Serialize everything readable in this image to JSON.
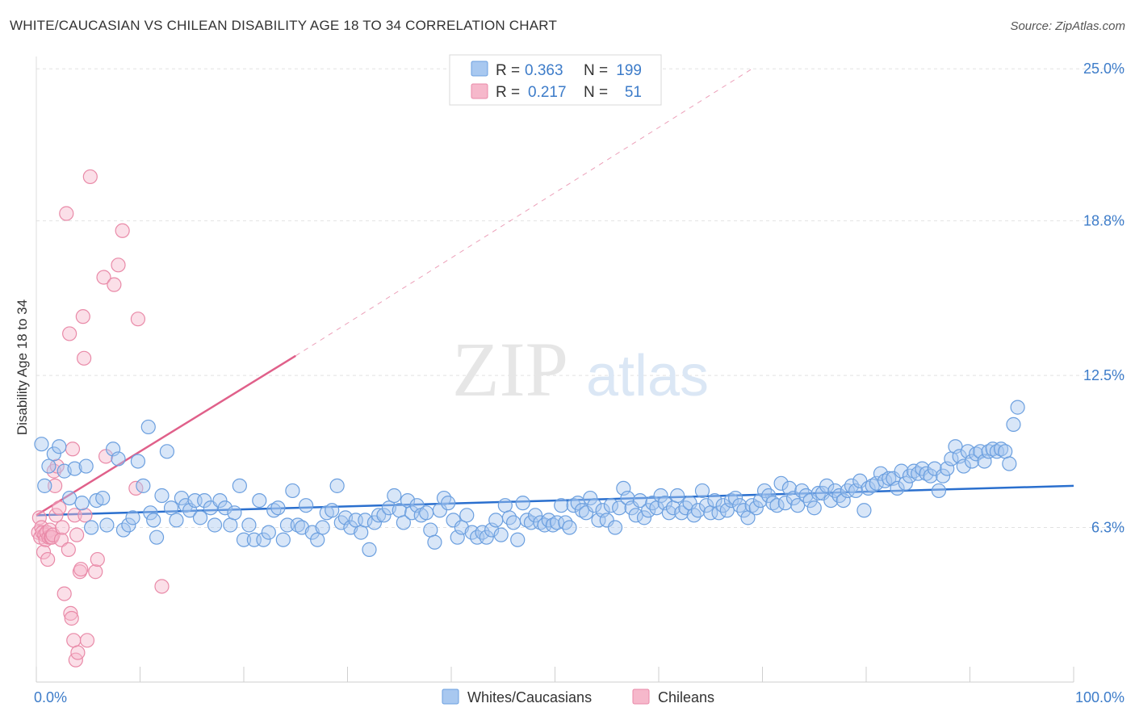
{
  "title": "WHITE/CAUCASIAN VS CHILEAN DISABILITY AGE 18 TO 34 CORRELATION CHART",
  "source": "Source: ZipAtlas.com",
  "watermark": {
    "zip": "ZIP",
    "atlas": "atlas"
  },
  "colors": {
    "blue_fill": "#a8c8f0",
    "blue_stroke": "#6b9fdf",
    "blue_line": "#2a6fce",
    "pink_fill": "#f6b8cb",
    "pink_stroke": "#e98aa8",
    "pink_line": "#e0608a",
    "axis_label": "#3d7cc9"
  },
  "legend": {
    "rows": [
      {
        "r_label": "R =",
        "r_value": "0.363",
        "n_label": "N =",
        "n_value": "199"
      },
      {
        "r_label": "R =",
        "r_value": "0.217",
        "n_label": "N =",
        "n_value": "51"
      }
    ]
  },
  "bottom_legend": [
    "Whites/Caucasians",
    "Chileans"
  ],
  "chart_data": {
    "type": "scatter",
    "title": "WHITE/CAUCASIAN VS CHILEAN DISABILITY AGE 18 TO 34 CORRELATION CHART",
    "xlabel": "",
    "ylabel": "Disability Age 18 to 34",
    "xlim": [
      0,
      100
    ],
    "ylim": [
      0,
      25.5
    ],
    "x_tick_labels": [
      "0.0%",
      "100.0%"
    ],
    "y_ticks": [
      6.3,
      12.5,
      18.8,
      25.0
    ],
    "y_tick_labels": [
      "6.3%",
      "12.5%",
      "18.8%",
      "25.0%"
    ],
    "grid": true,
    "legend_position": "top-center",
    "series": [
      {
        "name": "Whites/Caucasians",
        "trend": {
          "x": [
            0,
            100
          ],
          "y": [
            6.8,
            8.0
          ]
        },
        "points": [
          [
            0.5,
            9.7
          ],
          [
            0.8,
            8.0
          ],
          [
            1.2,
            8.8
          ],
          [
            1.7,
            9.3
          ],
          [
            2.2,
            9.6
          ],
          [
            2.7,
            8.6
          ],
          [
            3.2,
            7.5
          ],
          [
            3.7,
            8.7
          ],
          [
            4.4,
            7.3
          ],
          [
            4.8,
            8.8
          ],
          [
            5.3,
            6.3
          ],
          [
            5.8,
            7.4
          ],
          [
            6.4,
            7.5
          ],
          [
            6.8,
            6.4
          ],
          [
            7.4,
            9.5
          ],
          [
            7.9,
            9.1
          ],
          [
            8.4,
            6.2
          ],
          [
            8.9,
            6.4
          ],
          [
            9.3,
            6.7
          ],
          [
            9.8,
            9.0
          ],
          [
            10.3,
            8.0
          ],
          [
            10.8,
            10.4
          ],
          [
            11.0,
            6.9
          ],
          [
            11.3,
            6.6
          ],
          [
            11.6,
            5.9
          ],
          [
            12.1,
            7.6
          ],
          [
            12.6,
            9.4
          ],
          [
            13.0,
            7.1
          ],
          [
            13.5,
            6.6
          ],
          [
            14.0,
            7.5
          ],
          [
            14.4,
            7.2
          ],
          [
            14.8,
            7.0
          ],
          [
            15.3,
            7.4
          ],
          [
            15.8,
            6.7
          ],
          [
            16.2,
            7.4
          ],
          [
            16.8,
            7.1
          ],
          [
            17.2,
            6.4
          ],
          [
            17.7,
            7.4
          ],
          [
            18.2,
            7.1
          ],
          [
            18.7,
            6.4
          ],
          [
            19.1,
            6.9
          ],
          [
            19.6,
            8.0
          ],
          [
            20.0,
            5.8
          ],
          [
            20.5,
            6.4
          ],
          [
            21.0,
            5.8
          ],
          [
            21.5,
            7.4
          ],
          [
            21.9,
            5.8
          ],
          [
            22.4,
            6.1
          ],
          [
            22.9,
            7.0
          ],
          [
            23.3,
            7.1
          ],
          [
            23.8,
            5.8
          ],
          [
            24.2,
            6.4
          ],
          [
            24.7,
            7.8
          ],
          [
            25.2,
            6.4
          ],
          [
            25.6,
            6.3
          ],
          [
            26.0,
            7.2
          ],
          [
            26.6,
            6.1
          ],
          [
            27.1,
            5.8
          ],
          [
            27.6,
            6.3
          ],
          [
            28.0,
            6.9
          ],
          [
            28.5,
            7.0
          ],
          [
            29.0,
            8.0
          ],
          [
            29.4,
            6.5
          ],
          [
            29.8,
            6.7
          ],
          [
            30.3,
            6.3
          ],
          [
            30.8,
            6.6
          ],
          [
            31.3,
            6.1
          ],
          [
            31.7,
            6.6
          ],
          [
            32.1,
            5.4
          ],
          [
            32.6,
            6.5
          ],
          [
            33.0,
            6.8
          ],
          [
            33.5,
            6.8
          ],
          [
            34.0,
            7.1
          ],
          [
            34.5,
            7.6
          ],
          [
            35.0,
            7.0
          ],
          [
            35.4,
            6.5
          ],
          [
            35.8,
            7.4
          ],
          [
            36.2,
            6.9
          ],
          [
            36.7,
            7.2
          ],
          [
            37.1,
            6.8
          ],
          [
            37.6,
            6.9
          ],
          [
            38.0,
            6.2
          ],
          [
            38.4,
            5.7
          ],
          [
            38.9,
            7.0
          ],
          [
            39.3,
            7.5
          ],
          [
            39.7,
            7.3
          ],
          [
            40.2,
            6.6
          ],
          [
            40.6,
            5.9
          ],
          [
            41.0,
            6.3
          ],
          [
            41.5,
            6.8
          ],
          [
            42.0,
            6.1
          ],
          [
            42.5,
            5.9
          ],
          [
            43.0,
            6.1
          ],
          [
            43.4,
            5.9
          ],
          [
            43.9,
            6.2
          ],
          [
            44.3,
            6.6
          ],
          [
            44.8,
            6.0
          ],
          [
            45.2,
            7.2
          ],
          [
            45.6,
            6.7
          ],
          [
            46.0,
            6.5
          ],
          [
            46.4,
            5.8
          ],
          [
            46.9,
            7.3
          ],
          [
            47.3,
            6.6
          ],
          [
            47.7,
            6.5
          ],
          [
            48.1,
            6.8
          ],
          [
            48.6,
            6.5
          ],
          [
            49.0,
            6.4
          ],
          [
            49.4,
            6.6
          ],
          [
            49.8,
            6.4
          ],
          [
            50.2,
            6.5
          ],
          [
            50.6,
            7.2
          ],
          [
            51.0,
            6.5
          ],
          [
            51.4,
            6.3
          ],
          [
            51.8,
            7.2
          ],
          [
            52.2,
            7.3
          ],
          [
            52.6,
            7.0
          ],
          [
            53.0,
            6.9
          ],
          [
            53.4,
            7.5
          ],
          [
            53.8,
            7.2
          ],
          [
            54.2,
            6.6
          ],
          [
            54.6,
            7.0
          ],
          [
            55.0,
            6.6
          ],
          [
            55.4,
            7.2
          ],
          [
            55.8,
            6.3
          ],
          [
            56.2,
            7.1
          ],
          [
            56.6,
            7.9
          ],
          [
            57.0,
            7.5
          ],
          [
            57.4,
            7.1
          ],
          [
            57.8,
            6.8
          ],
          [
            58.2,
            7.4
          ],
          [
            58.6,
            6.7
          ],
          [
            59.0,
            7.0
          ],
          [
            59.4,
            7.3
          ],
          [
            59.8,
            7.1
          ],
          [
            60.2,
            7.6
          ],
          [
            60.6,
            7.3
          ],
          [
            61.0,
            6.9
          ],
          [
            61.4,
            7.1
          ],
          [
            61.8,
            7.6
          ],
          [
            62.2,
            6.9
          ],
          [
            62.6,
            7.1
          ],
          [
            63.0,
            7.3
          ],
          [
            63.4,
            6.8
          ],
          [
            63.8,
            7.0
          ],
          [
            64.2,
            7.8
          ],
          [
            64.6,
            7.2
          ],
          [
            65.0,
            6.9
          ],
          [
            65.4,
            7.4
          ],
          [
            65.8,
            6.9
          ],
          [
            66.2,
            7.2
          ],
          [
            66.6,
            7.0
          ],
          [
            67.0,
            7.4
          ],
          [
            67.4,
            7.5
          ],
          [
            67.8,
            7.2
          ],
          [
            68.2,
            7.0
          ],
          [
            68.6,
            6.7
          ],
          [
            69.0,
            7.2
          ],
          [
            69.4,
            7.1
          ],
          [
            69.8,
            7.4
          ],
          [
            70.2,
            7.8
          ],
          [
            70.6,
            7.6
          ],
          [
            71.0,
            7.3
          ],
          [
            71.4,
            7.2
          ],
          [
            71.8,
            8.1
          ],
          [
            72.2,
            7.3
          ],
          [
            72.6,
            7.9
          ],
          [
            73.0,
            7.5
          ],
          [
            73.4,
            7.2
          ],
          [
            73.8,
            7.8
          ],
          [
            74.2,
            7.6
          ],
          [
            74.6,
            7.4
          ],
          [
            75.0,
            7.1
          ],
          [
            75.4,
            7.7
          ],
          [
            75.8,
            7.7
          ],
          [
            76.2,
            8.0
          ],
          [
            76.6,
            7.4
          ],
          [
            77.0,
            7.8
          ],
          [
            77.4,
            7.6
          ],
          [
            77.8,
            7.4
          ],
          [
            78.2,
            7.8
          ],
          [
            78.6,
            8.0
          ],
          [
            79.0,
            7.8
          ],
          [
            79.4,
            8.2
          ],
          [
            79.8,
            7.0
          ],
          [
            80.2,
            7.9
          ],
          [
            80.6,
            8.0
          ],
          [
            81.0,
            8.1
          ],
          [
            81.4,
            8.5
          ],
          [
            81.8,
            8.2
          ],
          [
            82.2,
            8.3
          ],
          [
            82.6,
            8.3
          ],
          [
            83.0,
            7.9
          ],
          [
            83.4,
            8.6
          ],
          [
            83.8,
            8.1
          ],
          [
            84.2,
            8.4
          ],
          [
            84.6,
            8.6
          ],
          [
            85.0,
            8.5
          ],
          [
            85.4,
            8.7
          ],
          [
            85.8,
            8.5
          ],
          [
            86.2,
            8.4
          ],
          [
            86.6,
            8.7
          ],
          [
            87.0,
            7.8
          ],
          [
            87.4,
            8.4
          ],
          [
            87.8,
            8.7
          ],
          [
            88.2,
            9.1
          ],
          [
            88.6,
            9.6
          ],
          [
            89.0,
            9.2
          ],
          [
            89.4,
            8.8
          ],
          [
            89.8,
            9.4
          ],
          [
            90.2,
            9.0
          ],
          [
            90.6,
            9.3
          ],
          [
            91.0,
            9.4
          ],
          [
            91.4,
            9.0
          ],
          [
            91.8,
            9.4
          ],
          [
            92.2,
            9.5
          ],
          [
            92.6,
            9.4
          ],
          [
            93.0,
            9.5
          ],
          [
            93.4,
            9.4
          ],
          [
            93.8,
            8.9
          ],
          [
            94.2,
            10.5
          ],
          [
            94.6,
            11.2
          ]
        ]
      },
      {
        "name": "Chileans",
        "trend": {
          "x": [
            0,
            25
          ],
          "y": [
            6.8,
            13.3
          ],
          "extended": {
            "x": [
              25,
              69
            ],
            "y": [
              13.3,
              25.0
            ]
          }
        },
        "points": [
          [
            0.2,
            6.1
          ],
          [
            0.3,
            6.7
          ],
          [
            0.4,
            5.9
          ],
          [
            0.5,
            6.3
          ],
          [
            0.6,
            6.1
          ],
          [
            0.7,
            5.3
          ],
          [
            0.8,
            6.0
          ],
          [
            0.9,
            5.8
          ],
          [
            1.0,
            6.1
          ],
          [
            1.1,
            5.0
          ],
          [
            1.2,
            5.9
          ],
          [
            1.3,
            6.2
          ],
          [
            1.4,
            5.9
          ],
          [
            1.5,
            5.9
          ],
          [
            1.6,
            6.0
          ],
          [
            1.7,
            8.6
          ],
          [
            1.8,
            8.0
          ],
          [
            1.9,
            6.8
          ],
          [
            2.0,
            8.8
          ],
          [
            2.2,
            7.1
          ],
          [
            2.4,
            5.8
          ],
          [
            2.5,
            6.3
          ],
          [
            2.7,
            3.6
          ],
          [
            2.9,
            19.1
          ],
          [
            3.1,
            5.4
          ],
          [
            3.2,
            14.2
          ],
          [
            3.3,
            2.8
          ],
          [
            3.4,
            2.6
          ],
          [
            3.5,
            9.5
          ],
          [
            3.6,
            1.7
          ],
          [
            3.7,
            6.8
          ],
          [
            3.8,
            0.9
          ],
          [
            3.9,
            6.0
          ],
          [
            4.0,
            1.2
          ],
          [
            4.2,
            4.5
          ],
          [
            4.3,
            4.6
          ],
          [
            4.5,
            14.9
          ],
          [
            4.6,
            13.2
          ],
          [
            4.7,
            6.8
          ],
          [
            4.9,
            1.7
          ],
          [
            5.2,
            20.6
          ],
          [
            5.7,
            4.5
          ],
          [
            5.9,
            5.0
          ],
          [
            6.5,
            16.5
          ],
          [
            6.7,
            9.2
          ],
          [
            7.5,
            16.2
          ],
          [
            7.9,
            17.0
          ],
          [
            8.3,
            18.4
          ],
          [
            9.6,
            7.9
          ],
          [
            9.8,
            14.8
          ],
          [
            12.1,
            3.9
          ]
        ]
      }
    ]
  }
}
